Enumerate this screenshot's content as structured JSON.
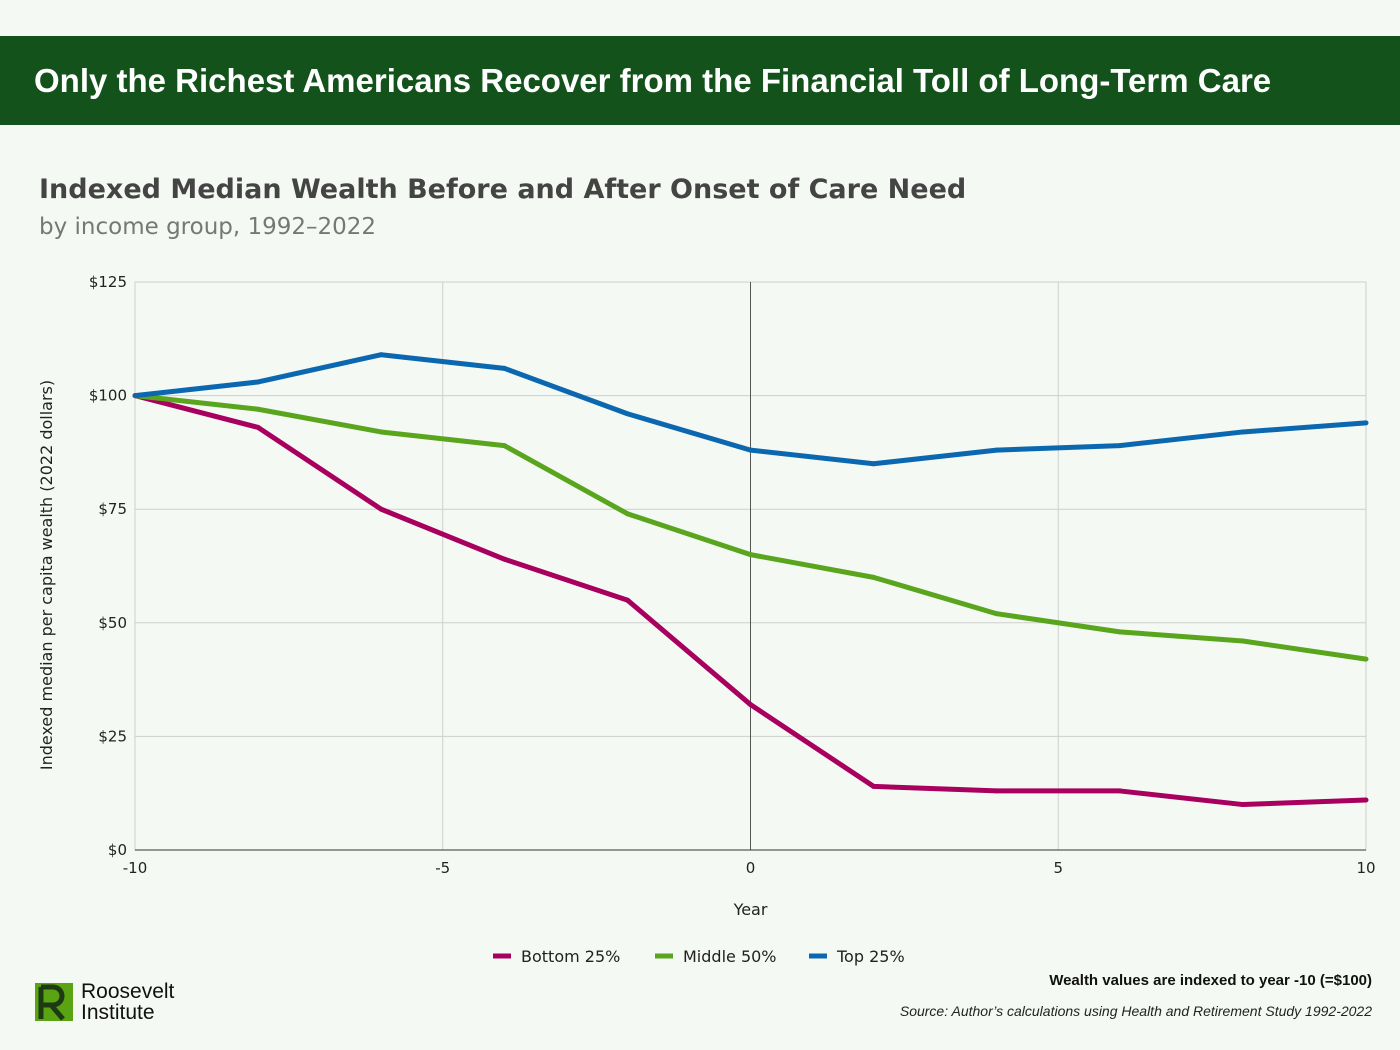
{
  "banner": {
    "title": "Only the Richest Americans Recover from the Financial Toll of Long-Term Care"
  },
  "footer": {
    "note": "Wealth values are indexed to year -10 (=$100)",
    "source": "Source: Author’s calculations using Health and Retirement Study 1992-2022",
    "logo_line1": "Roosevelt",
    "logo_line2": "Institute"
  },
  "chart_data": {
    "type": "line",
    "title": "Indexed Median Wealth Before and After Onset of Care Need",
    "subtitle": "by income group, 1992–2022",
    "xlabel": "Year",
    "ylabel": "Indexed median per capita wealth (2022 dollars)",
    "xlim": [
      -10,
      10
    ],
    "ylim": [
      0,
      125
    ],
    "xticks": [
      "-10",
      "-5",
      "0",
      "5",
      "10"
    ],
    "yticks": [
      "$0",
      "$25",
      "$50",
      "$75",
      "$100",
      "$125"
    ],
    "grid": true,
    "legend_position": "bottom",
    "x": [
      -10,
      -8,
      -6,
      -4,
      -2,
      0,
      2,
      4,
      6,
      8,
      10
    ],
    "series": [
      {
        "name": "Bottom 25%",
        "color": "#a8005e",
        "values": [
          100,
          93,
          75,
          64,
          55,
          32,
          14,
          13,
          13,
          10,
          11
        ]
      },
      {
        "name": "Middle 50%",
        "color": "#5aa51e",
        "values": [
          100,
          97,
          92,
          89,
          74,
          65,
          60,
          52,
          48,
          46,
          42
        ]
      },
      {
        "name": "Top 25%",
        "color": "#0b68b0",
        "values": [
          100,
          103,
          109,
          106,
          96,
          88,
          85,
          88,
          89,
          92,
          94
        ]
      }
    ]
  }
}
